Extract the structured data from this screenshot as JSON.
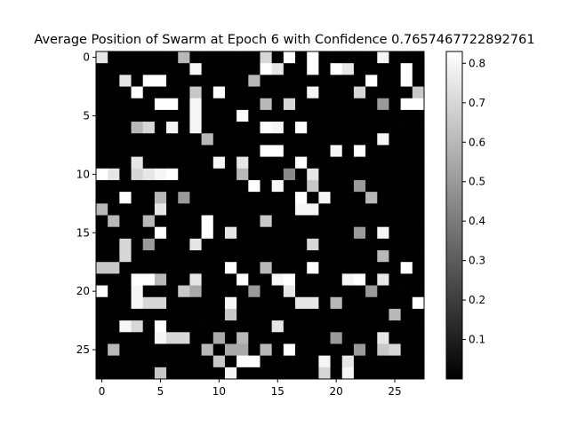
{
  "chart_data": {
    "type": "heatmap",
    "title": "Average Position of Swarm at Epoch 6 with Confidence 0.7657467722892761",
    "colormap": "gray",
    "rows": 28,
    "cols": 28,
    "xticks": [
      0,
      5,
      10,
      15,
      20,
      25
    ],
    "yticks": [
      0,
      5,
      10,
      15,
      20,
      25
    ],
    "colorbar": {
      "range": [
        0.0,
        0.83
      ],
      "ticks": [
        0.1,
        0.2,
        0.3,
        0.4,
        0.5,
        0.6,
        0.7,
        0.8
      ]
    },
    "values": [
      [
        0.75,
        0,
        0,
        0,
        0,
        0,
        0,
        0.6,
        0,
        0,
        0,
        0,
        0,
        0,
        0.7,
        0,
        0.85,
        0,
        0.85,
        0,
        0,
        0,
        0,
        0,
        0.8,
        0,
        0,
        0
      ],
      [
        0,
        0,
        0,
        0,
        0,
        0,
        0,
        0,
        0.8,
        0,
        0,
        0,
        0,
        0,
        0.85,
        0.75,
        0,
        0,
        0.85,
        0,
        0.85,
        0.75,
        0,
        0,
        0,
        0,
        0.85,
        0
      ],
      [
        0,
        0,
        0.75,
        0,
        0.85,
        0.85,
        0,
        0,
        0,
        0,
        0,
        0,
        0,
        0.6,
        0,
        0,
        0,
        0,
        0,
        0,
        0,
        0,
        0,
        0.85,
        0,
        0,
        0.85,
        0
      ],
      [
        0,
        0,
        0,
        0.85,
        0,
        0,
        0,
        0,
        0.65,
        0,
        0.85,
        0,
        0,
        0,
        0,
        0,
        0,
        0,
        0.8,
        0,
        0,
        0,
        0.7,
        0,
        0,
        0,
        0,
        0.65
      ],
      [
        0,
        0,
        0,
        0,
        0,
        0.85,
        0.85,
        0,
        0.8,
        0,
        0,
        0,
        0,
        0,
        0.6,
        0,
        0.7,
        0,
        0,
        0,
        0,
        0,
        0,
        0,
        0.5,
        0,
        0.85,
        0.85
      ],
      [
        0,
        0,
        0,
        0,
        0,
        0,
        0,
        0,
        0.8,
        0,
        0,
        0,
        0.85,
        0,
        0,
        0,
        0,
        0,
        0,
        0,
        0,
        0,
        0,
        0,
        0,
        0,
        0,
        0
      ],
      [
        0,
        0,
        0,
        0.6,
        0.7,
        0,
        0.8,
        0,
        0.8,
        0,
        0,
        0,
        0,
        0,
        0.85,
        0.8,
        0,
        0.85,
        0,
        0,
        0,
        0,
        0,
        0,
        0,
        0,
        0,
        0
      ],
      [
        0,
        0,
        0,
        0,
        0,
        0,
        0,
        0,
        0,
        0.6,
        0,
        0,
        0,
        0,
        0,
        0,
        0,
        0,
        0,
        0,
        0,
        0,
        0,
        0,
        0.8,
        0,
        0,
        0
      ],
      [
        0,
        0,
        0,
        0,
        0,
        0,
        0,
        0,
        0,
        0,
        0,
        0,
        0,
        0,
        0.85,
        0.85,
        0,
        0,
        0,
        0,
        0.8,
        0,
        0.85,
        0,
        0,
        0,
        0,
        0
      ],
      [
        0,
        0,
        0,
        0.75,
        0,
        0,
        0,
        0,
        0,
        0,
        0.8,
        0,
        0.75,
        0,
        0,
        0,
        0,
        0.85,
        0,
        0,
        0,
        0,
        0,
        0,
        0,
        0,
        0,
        0
      ],
      [
        0.85,
        0.75,
        0,
        0.7,
        0.75,
        0.8,
        0.85,
        0,
        0,
        0,
        0,
        0,
        0.6,
        0,
        0,
        0,
        0.45,
        0,
        0.75,
        0,
        0,
        0,
        0,
        0,
        0,
        0,
        0,
        0
      ],
      [
        0,
        0,
        0,
        0,
        0,
        0,
        0,
        0,
        0,
        0,
        0,
        0,
        0,
        0.85,
        0,
        0.8,
        0,
        0,
        0.65,
        0,
        0,
        0,
        0.5,
        0,
        0,
        0,
        0,
        0
      ],
      [
        0,
        0,
        0.85,
        0,
        0,
        0.6,
        0,
        0.5,
        0,
        0,
        0,
        0,
        0,
        0,
        0,
        0,
        0,
        0.85,
        0,
        0.8,
        0,
        0,
        0,
        0.6,
        0,
        0,
        0,
        0
      ],
      [
        0.6,
        0,
        0,
        0,
        0,
        0.75,
        0,
        0,
        0,
        0,
        0,
        0,
        0,
        0,
        0,
        0,
        0,
        0.8,
        0.8,
        0,
        0,
        0,
        0,
        0,
        0,
        0,
        0,
        0
      ],
      [
        0,
        0.6,
        0,
        0,
        0.6,
        0,
        0,
        0,
        0,
        0.85,
        0,
        0,
        0,
        0,
        0.65,
        0,
        0,
        0,
        0,
        0,
        0,
        0,
        0,
        0,
        0,
        0,
        0,
        0
      ],
      [
        0,
        0,
        0,
        0,
        0,
        0.85,
        0,
        0,
        0,
        0.85,
        0,
        0.75,
        0,
        0,
        0,
        0,
        0,
        0,
        0,
        0,
        0,
        0,
        0.5,
        0,
        0.8,
        0,
        0,
        0
      ],
      [
        0,
        0,
        0.7,
        0,
        0.5,
        0,
        0,
        0,
        0.75,
        0,
        0,
        0,
        0,
        0,
        0,
        0,
        0,
        0,
        0.7,
        0,
        0,
        0,
        0,
        0,
        0,
        0,
        0,
        0
      ],
      [
        0,
        0,
        0.7,
        0,
        0,
        0,
        0,
        0,
        0,
        0,
        0,
        0,
        0,
        0,
        0,
        0,
        0,
        0,
        0,
        0,
        0,
        0,
        0,
        0,
        0.6,
        0,
        0,
        0
      ],
      [
        0.65,
        0.65,
        0,
        0,
        0,
        0,
        0,
        0,
        0,
        0,
        0,
        0.85,
        0,
        0,
        0.6,
        0,
        0,
        0,
        0.85,
        0,
        0,
        0,
        0,
        0,
        0,
        0,
        0.85,
        0
      ],
      [
        0,
        0,
        0,
        0.85,
        0.85,
        0.6,
        0,
        0,
        0.75,
        0,
        0,
        0,
        0.85,
        0,
        0,
        0.8,
        0.85,
        0,
        0,
        0,
        0,
        0.8,
        0.85,
        0,
        0.75,
        0,
        0,
        0
      ],
      [
        0.85,
        0,
        0,
        0.8,
        0,
        0,
        0,
        0.65,
        0.55,
        0,
        0,
        0,
        0,
        0.5,
        0,
        0,
        0.75,
        0,
        0,
        0,
        0,
        0,
        0,
        0.5,
        0,
        0,
        0,
        0
      ],
      [
        0,
        0,
        0,
        0.8,
        0.7,
        0.7,
        0,
        0,
        0,
        0,
        0,
        0.8,
        0,
        0,
        0,
        0,
        0,
        0.75,
        0.75,
        0,
        0.6,
        0,
        0,
        0,
        0,
        0,
        0,
        0.85
      ],
      [
        0,
        0,
        0,
        0,
        0,
        0,
        0,
        0,
        0,
        0,
        0,
        0.65,
        0,
        0,
        0,
        0,
        0,
        0,
        0,
        0,
        0,
        0,
        0,
        0,
        0,
        0.6,
        0,
        0
      ],
      [
        0,
        0,
        0.8,
        0.7,
        0,
        0.85,
        0,
        0,
        0,
        0,
        0,
        0,
        0,
        0,
        0,
        0.75,
        0,
        0,
        0,
        0,
        0,
        0,
        0,
        0,
        0,
        0,
        0,
        0
      ],
      [
        0,
        0,
        0,
        0,
        0,
        0.8,
        0.7,
        0.7,
        0,
        0,
        0.55,
        0,
        0.6,
        0,
        0,
        0,
        0,
        0,
        0,
        0,
        0.5,
        0,
        0,
        0,
        0.75,
        0,
        0,
        0
      ],
      [
        0,
        0.6,
        0,
        0,
        0,
        0,
        0,
        0,
        0,
        0.6,
        0,
        0.55,
        0.55,
        0,
        0.6,
        0,
        0.85,
        0,
        0,
        0,
        0,
        0,
        0.5,
        0,
        0.65,
        0.7,
        0,
        0
      ],
      [
        0,
        0,
        0,
        0,
        0,
        0,
        0,
        0,
        0,
        0,
        0.65,
        0,
        0.85,
        0.85,
        0,
        0,
        0,
        0,
        0,
        0.8,
        0,
        0.75,
        0,
        0,
        0,
        0,
        0,
        0
      ],
      [
        0,
        0,
        0,
        0,
        0,
        0.65,
        0,
        0,
        0,
        0,
        0,
        0.8,
        0,
        0,
        0,
        0,
        0,
        0,
        0,
        0.7,
        0,
        0.8,
        0,
        0,
        0,
        0,
        0,
        0
      ]
    ]
  }
}
